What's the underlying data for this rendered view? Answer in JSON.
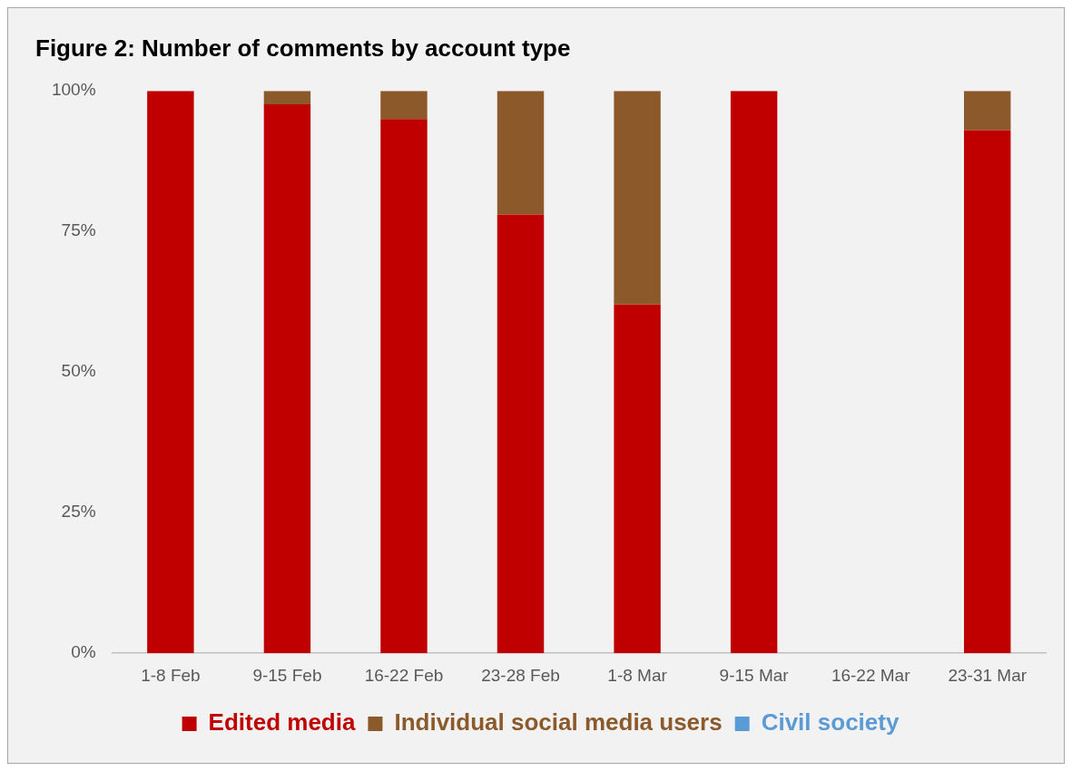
{
  "chart_data": {
    "type": "bar",
    "title": "Figure 2: Number of comments by account type",
    "categories": [
      "1-8 Feb",
      "9-15 Feb",
      "16-22 Feb",
      "23-28 Feb",
      "1-8 Mar",
      "9-15 Mar",
      "16-22 Mar",
      "23-31 Mar"
    ],
    "series": [
      {
        "name": "Edited media",
        "color": "#c00000",
        "values": [
          100,
          97.6,
          95,
          78,
          62,
          100,
          null,
          93
        ]
      },
      {
        "name": "Individual social media users",
        "color": "#8c5a2a",
        "values": [
          0,
          2.4,
          5,
          22,
          38,
          0,
          null,
          7
        ]
      },
      {
        "name": "Civil society",
        "color": "#5b9bd5",
        "values": [
          0,
          0,
          0,
          0,
          0,
          0,
          null,
          0
        ]
      }
    ],
    "stacked": true,
    "ylim": [
      0,
      100
    ],
    "yticks": [
      {
        "value": 0,
        "label": "0%"
      },
      {
        "value": 25,
        "label": "25%"
      },
      {
        "value": 50,
        "label": "50%"
      },
      {
        "value": 75,
        "label": "75%"
      },
      {
        "value": 100,
        "label": "100%"
      }
    ],
    "grid": false,
    "legend": "bottom"
  }
}
